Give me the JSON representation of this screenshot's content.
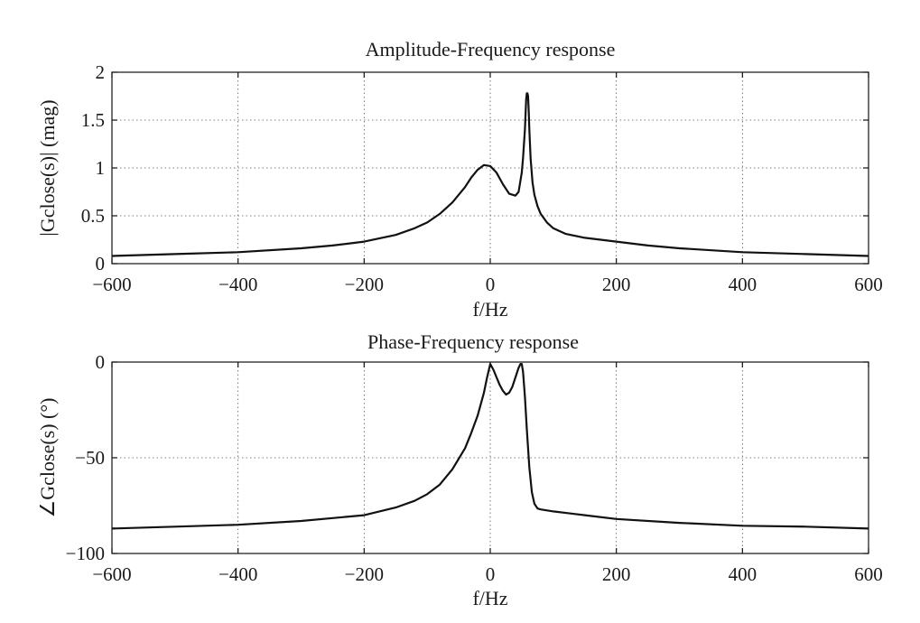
{
  "chart_data": [
    {
      "type": "line",
      "title": "Amplitude-Frequency response",
      "xlabel": "f/Hz",
      "ylabel": "|Gclose(s)| (mag)",
      "xlim": [
        -600,
        600
      ],
      "ylim": [
        0,
        2
      ],
      "xticks": [
        -600,
        -400,
        -200,
        0,
        200,
        400,
        600
      ],
      "xtick_labels": [
        "−600",
        "−400",
        "−200",
        "0",
        "200",
        "400",
        "600"
      ],
      "yticks": [
        0,
        0.5,
        1,
        1.5,
        2
      ],
      "ytick_labels": [
        "0",
        "0.5",
        "1",
        "1.5",
        "2"
      ],
      "grid": true,
      "series": [
        {
          "x": [
            -600,
            -500,
            -400,
            -300,
            -250,
            -200,
            -150,
            -120,
            -100,
            -80,
            -60,
            -50,
            -40,
            -30,
            -20,
            -10,
            0,
            10,
            20,
            30,
            40,
            45,
            50,
            52,
            55,
            57,
            58,
            59,
            60,
            61,
            62,
            64,
            67,
            70,
            75,
            80,
            90,
            100,
            120,
            150,
            200,
            250,
            300,
            400,
            500,
            600
          ],
          "y": [
            0.08,
            0.1,
            0.12,
            0.16,
            0.19,
            0.23,
            0.3,
            0.37,
            0.43,
            0.52,
            0.64,
            0.72,
            0.8,
            0.9,
            0.98,
            1.03,
            1.02,
            0.95,
            0.83,
            0.73,
            0.71,
            0.75,
            0.95,
            1.1,
            1.4,
            1.72,
            1.78,
            1.78,
            1.75,
            1.6,
            1.4,
            1.1,
            0.85,
            0.72,
            0.6,
            0.52,
            0.43,
            0.37,
            0.31,
            0.27,
            0.23,
            0.19,
            0.16,
            0.12,
            0.1,
            0.08
          ]
        }
      ]
    },
    {
      "type": "line",
      "title": "Phase-Frequency response",
      "xlabel": "f/Hz",
      "ylabel": "∠Gclose(s) (°)",
      "xlim": [
        -600,
        600
      ],
      "ylim": [
        -100,
        0
      ],
      "xticks": [
        -600,
        -400,
        -200,
        0,
        200,
        400,
        600
      ],
      "xtick_labels": [
        "−600",
        "−400",
        "−200",
        "0",
        "200",
        "400",
        "600"
      ],
      "yticks": [
        0,
        -50,
        -100
      ],
      "ytick_labels": [
        "0",
        "−50",
        "−100"
      ],
      "grid": true,
      "series": [
        {
          "x": [
            -600,
            -500,
            -400,
            -300,
            -250,
            -200,
            -150,
            -120,
            -100,
            -80,
            -60,
            -40,
            -30,
            -20,
            -10,
            -5,
            0,
            5,
            10,
            15,
            20,
            25,
            30,
            35,
            40,
            45,
            48,
            50,
            52,
            55,
            58,
            62,
            66,
            70,
            75,
            80,
            100,
            150,
            200,
            300,
            400,
            500,
            600
          ],
          "y": [
            -87,
            -86,
            -85,
            -83,
            -81.5,
            -80,
            -76,
            -72.5,
            -69,
            -64,
            -56,
            -45,
            -37,
            -28,
            -16,
            -8,
            -1,
            -4,
            -8,
            -12,
            -15,
            -17,
            -16,
            -13,
            -8,
            -3,
            -1,
            -1,
            -5,
            -18,
            -35,
            -55,
            -68,
            -74,
            -76.5,
            -77,
            -78,
            -80,
            -82,
            -84,
            -85.5,
            -86,
            -87
          ]
        }
      ]
    }
  ]
}
